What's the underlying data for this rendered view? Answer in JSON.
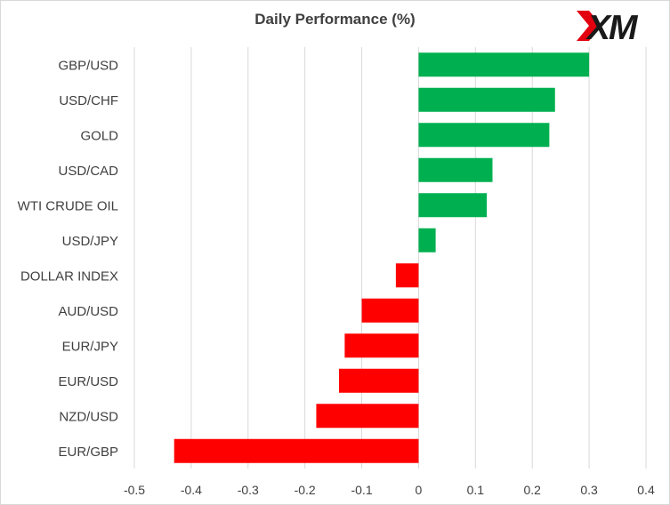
{
  "chart_data": {
    "type": "bar",
    "orientation": "horizontal",
    "title": "Daily Performance  (%)",
    "categories": [
      "GBP/USD",
      "USD/CHF",
      "GOLD",
      "USD/CAD",
      "WTI CRUDE OIL",
      "USD/JPY",
      "DOLLAR INDEX",
      "AUD/USD",
      "EUR/JPY",
      "EUR/USD",
      "NZD/USD",
      "EUR/GBP"
    ],
    "values": [
      0.3,
      0.24,
      0.23,
      0.13,
      0.12,
      0.03,
      -0.04,
      -0.1,
      -0.13,
      -0.14,
      -0.18,
      -0.43
    ],
    "xlim": [
      -0.5,
      0.4
    ],
    "xticks": [
      "-0.5",
      "-0.4",
      "-0.3",
      "-0.2",
      "-0.1",
      "0",
      "0.1",
      "0.2",
      "0.3",
      "0.4"
    ],
    "xtick_values": [
      -0.5,
      -0.4,
      -0.3,
      -0.2,
      -0.1,
      0,
      0.1,
      0.2,
      0.3,
      0.4
    ],
    "grid": "vertical",
    "legend": "none",
    "colors": {
      "positive": "#00b050",
      "negative": "#ff0000",
      "gridline": "#d9d9d9",
      "text": "#404040"
    }
  },
  "logo": {
    "text": "XM",
    "accent_color": "#e3000f",
    "text_color": "#1a1a1a"
  }
}
